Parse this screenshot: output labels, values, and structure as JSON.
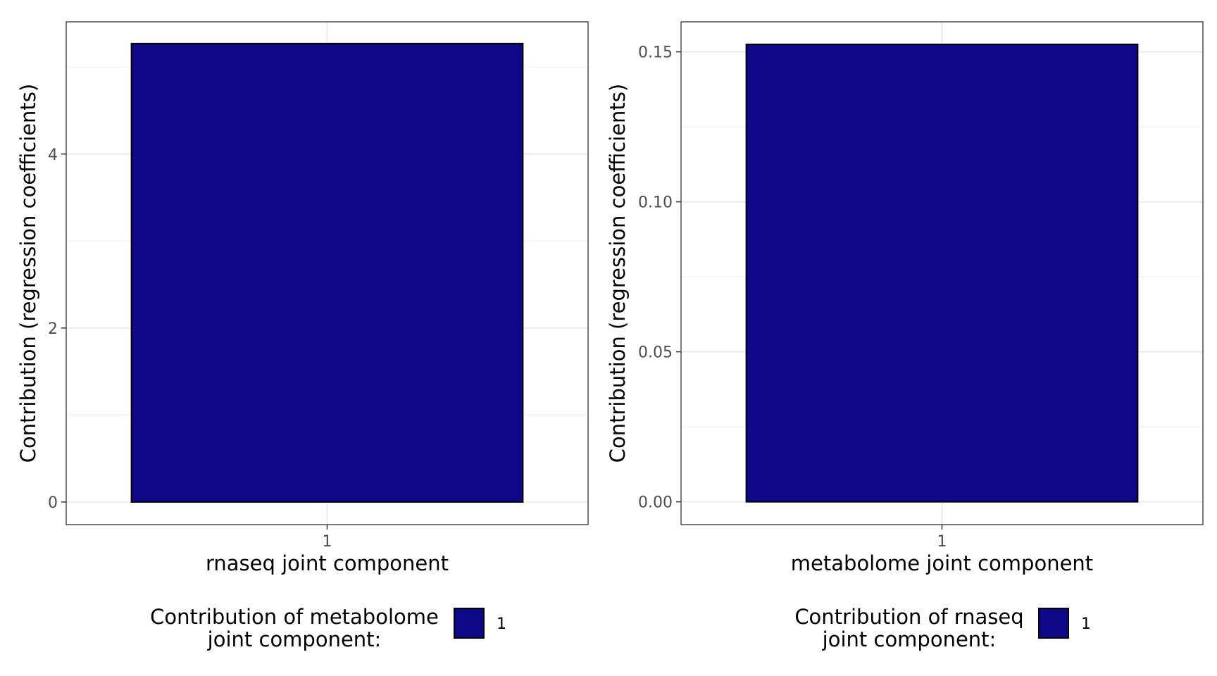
{
  "chart_data": [
    {
      "type": "bar",
      "categories": [
        "1"
      ],
      "series": [
        {
          "name": "1",
          "values": [
            5.27
          ]
        }
      ],
      "xlabel": "rnaseq joint component",
      "ylabel": "Contribution (regression coefficients)",
      "ylim": [
        -0.26,
        5.52
      ],
      "yticks": [
        0,
        2,
        4
      ],
      "ytick_labels": [
        "0",
        "2",
        "4"
      ],
      "grid": true,
      "legend": {
        "position": "bottom",
        "title_lines": [
          "Contribution of metabolome",
          "joint component:"
        ],
        "items": [
          "1"
        ]
      },
      "colors": {
        "fill": "#0d0887",
        "outline": "#000000"
      }
    },
    {
      "type": "bar",
      "categories": [
        "1"
      ],
      "series": [
        {
          "name": "1",
          "values": [
            0.1525
          ]
        }
      ],
      "xlabel": "metabolome joint component",
      "ylabel": "Contribution (regression coefficients)",
      "ylim": [
        -0.0076,
        0.16
      ],
      "yticks": [
        0,
        0.05,
        0.1,
        0.15
      ],
      "ytick_labels": [
        "0.00",
        "0.05",
        "0.10",
        "0.15"
      ],
      "grid": true,
      "legend": {
        "position": "bottom",
        "title_lines": [
          "Contribution of rnaseq",
          "joint component:"
        ],
        "items": [
          "1"
        ]
      },
      "colors": {
        "fill": "#0d0887",
        "outline": "#000000"
      }
    }
  ]
}
